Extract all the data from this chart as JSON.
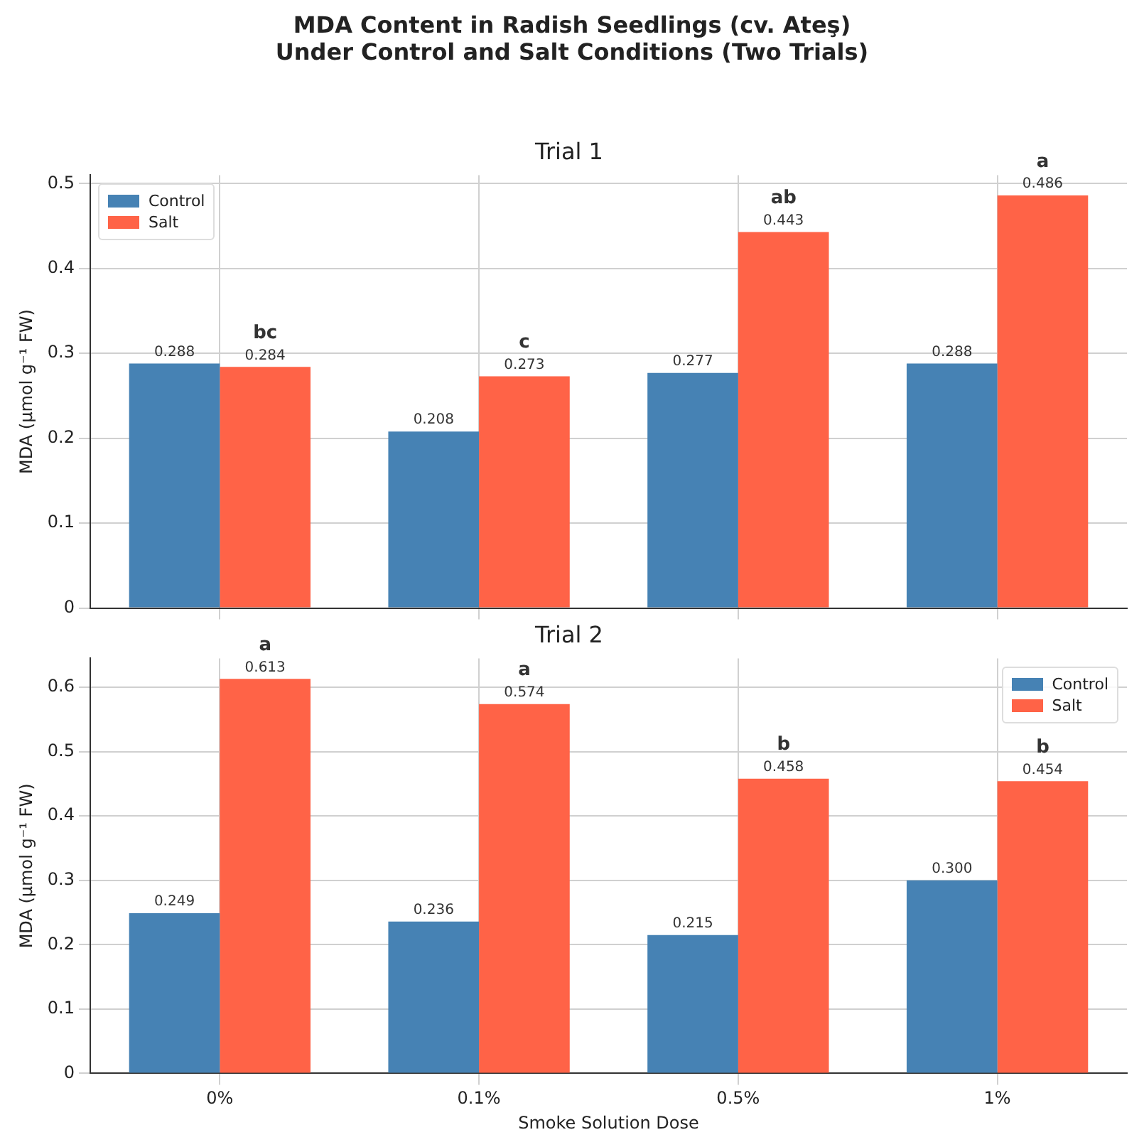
{
  "chart_data": [
    {
      "type": "bar",
      "title": "MDA Content in Radish Seedlings (cv. Ateş)\nUnder Control and Salt Conditions (Two Trials)",
      "subtitle": "Trial 1",
      "ylabel": "MDA (µmol g⁻¹ FW)",
      "categories": [
        "0%",
        "0.1%",
        "0.5%",
        "1%"
      ],
      "series": [
        {
          "name": "Control",
          "color": "#4682b4",
          "values": [
            0.288,
            0.208,
            0.277,
            0.288
          ],
          "value_labels": [
            "0.288",
            "0.208",
            "0.277",
            "0.288"
          ]
        },
        {
          "name": "Salt",
          "color": "#ff6347",
          "values": [
            0.284,
            0.273,
            0.443,
            0.486
          ],
          "value_labels": [
            "0.284",
            "0.273",
            "0.443",
            "0.486"
          ]
        }
      ],
      "annotations": [
        {
          "text": "bc",
          "x": "0%",
          "y": 0.284
        },
        {
          "text": "c",
          "x": "0.1%",
          "y": 0.273
        },
        {
          "text": "ab",
          "x": "0.5%",
          "y": 0.443
        },
        {
          "text": "a",
          "x": "1%",
          "y": 0.486
        }
      ],
      "ylim": [
        0,
        0.51
      ],
      "yticks": [
        0,
        0.1,
        0.2,
        0.3,
        0.4,
        0.5
      ],
      "grid": true,
      "legend": "top left",
      "tick_labels": "y"
    },
    {
      "type": "bar",
      "title": "Trial 2",
      "xlabel": "Smoke Solution Dose",
      "ylabel": "MDA (µmol g⁻¹ FW)",
      "categories": [
        "0%",
        "0.1%",
        "0.5%",
        "1%"
      ],
      "series": [
        {
          "name": "Control",
          "color": "#4682b4",
          "values": [
            0.249,
            0.236,
            0.215,
            0.3
          ],
          "value_labels": [
            "0.249",
            "0.236",
            "0.215",
            "0.300"
          ]
        },
        {
          "name": "Salt",
          "color": "#ff6347",
          "values": [
            0.613,
            0.574,
            0.458,
            0.454
          ],
          "value_labels": [
            "0.613",
            "0.574",
            "0.458",
            "0.454"
          ]
        }
      ],
      "annotations": [
        {
          "text": "a",
          "x": "0%",
          "y": 0.613
        },
        {
          "text": "a",
          "x": "0.1%",
          "y": 0.574
        },
        {
          "text": "b",
          "x": "0.5%",
          "y": 0.458
        },
        {
          "text": "b",
          "x": "1%",
          "y": 0.454
        }
      ],
      "ylim": [
        0,
        0.645
      ],
      "yticks": [
        0,
        0.1,
        0.2,
        0.3,
        0.4,
        0.5,
        0.6
      ],
      "grid": true,
      "legend": "top right"
    }
  ]
}
